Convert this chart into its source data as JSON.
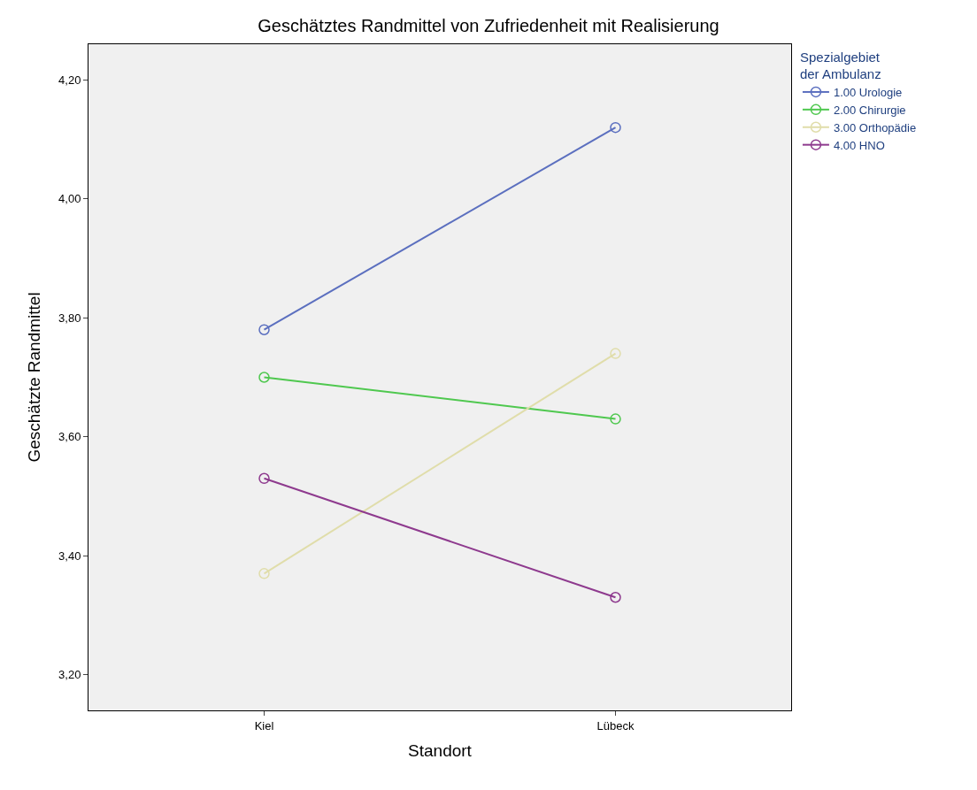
{
  "chart_data": {
    "type": "line",
    "title": "Geschätztes Randmittel von Zufriedenheit mit Realisierung",
    "xlabel": "Standort",
    "ylabel": "Geschätzte Randmittel",
    "legend_title": "Spezialgebiet\nder Ambulanz",
    "categories": [
      "Kiel",
      "Lübeck"
    ],
    "series": [
      {
        "name": "1.00 Urologie",
        "color": "#5b6fbf",
        "values": [
          3.78,
          4.12
        ]
      },
      {
        "name": "2.00 Chirurgie",
        "color": "#4fc84f",
        "values": [
          3.7,
          3.63
        ]
      },
      {
        "name": "3.00 Orthopädie",
        "color": "#e0ddaa",
        "values": [
          3.37,
          3.74
        ]
      },
      {
        "name": "4.00 HNO",
        "color": "#8e3a8e",
        "values": [
          3.53,
          3.33
        ]
      }
    ],
    "ylim": [
      3.14,
      4.26
    ],
    "yticks": [
      {
        "value": 3.2,
        "label": "3,20"
      },
      {
        "value": 3.4,
        "label": "3,40"
      },
      {
        "value": 3.6,
        "label": "3,60"
      },
      {
        "value": 3.8,
        "label": "3,80"
      },
      {
        "value": 4.0,
        "label": "4,00"
      },
      {
        "value": 4.2,
        "label": "4,20"
      }
    ],
    "grid": false,
    "legend": "top right",
    "marker": "circle",
    "line_style": "solid"
  }
}
